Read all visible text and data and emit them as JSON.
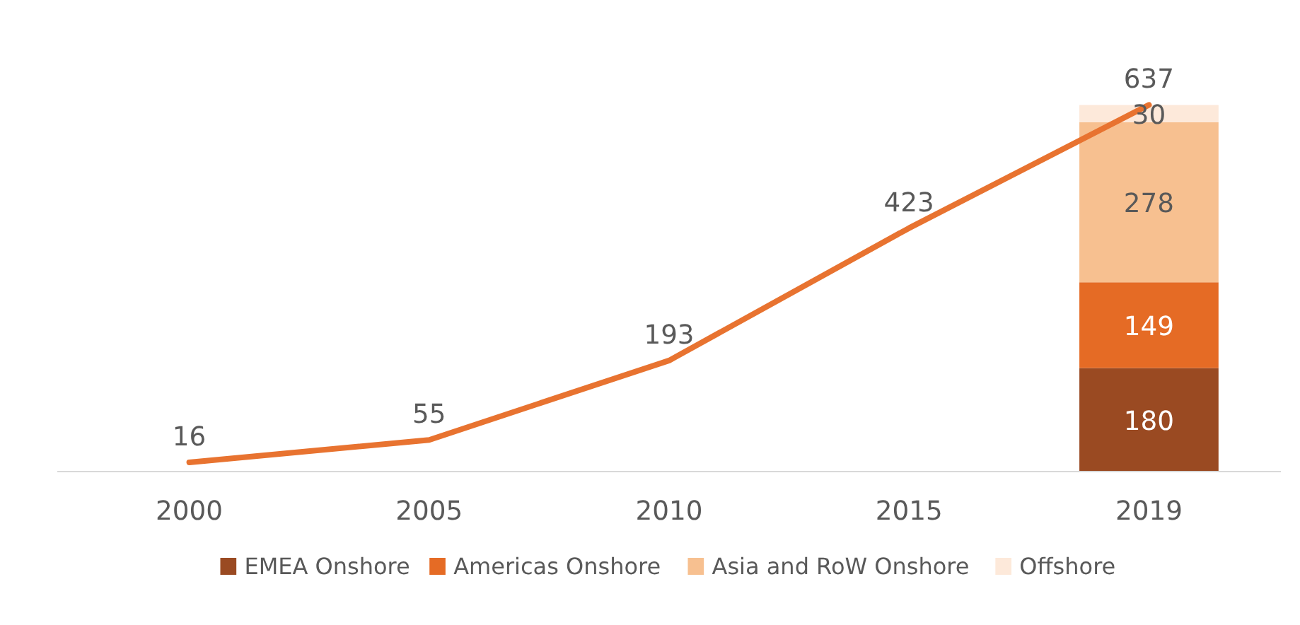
{
  "chart_data": {
    "type": "bar",
    "stacked": true,
    "categories": [
      "2000",
      "2005",
      "2010",
      "2015",
      "2019"
    ],
    "data_labels": true,
    "legend": "bottom",
    "series": [
      {
        "name": "EMEA Onshore",
        "color": "#9a4a22",
        "values": [
          null,
          null,
          null,
          null,
          180
        ]
      },
      {
        "name": "Americas Onshore",
        "color": "#e56b25",
        "values": [
          null,
          null,
          null,
          null,
          149
        ]
      },
      {
        "name": "Asia and RoW Onshore",
        "color": "#f7c090",
        "values": [
          null,
          null,
          null,
          null,
          278
        ]
      },
      {
        "name": "Offshore",
        "color": "#fde9da",
        "values": [
          null,
          null,
          null,
          null,
          30
        ]
      },
      {
        "type": "line",
        "color": "#e87330",
        "values": [
          16,
          55,
          193,
          423,
          637
        ]
      }
    ]
  }
}
